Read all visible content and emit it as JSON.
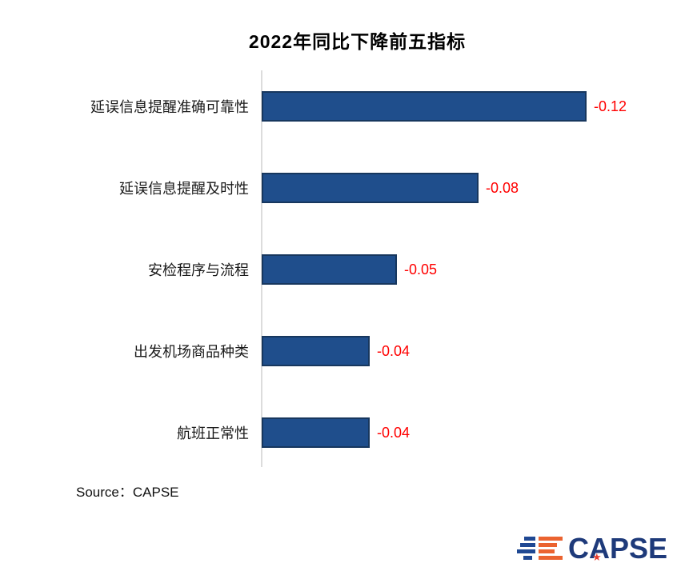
{
  "page": {
    "source": "Source：CAPSE"
  },
  "chart_data": {
    "type": "bar",
    "orientation": "horizontal",
    "title": "2022年同比下降前五指标",
    "categories": [
      "延误信息提醒准确可靠性",
      "延误信息提醒及时性",
      "安检程序与流程",
      "出发机场商品种类",
      "航班正常性"
    ],
    "values": [
      -0.12,
      -0.08,
      -0.05,
      -0.04,
      -0.04
    ],
    "value_labels": [
      "-0.12",
      "-0.08",
      "-0.05",
      "-0.04",
      "-0.04"
    ],
    "xlim": [
      0,
      0.12
    ],
    "grid": false,
    "legend": false,
    "bar_color": "#1f4e8c",
    "bar_border_color": "#17375e",
    "value_label_color": "#ff0000",
    "axis_line_color": "#dcdcdc"
  },
  "logo": {
    "text": "CAPSE",
    "star_icon": "★",
    "navy_color": "#1e3a7a",
    "orange_color": "#eb6330",
    "star_color": "#e63e2e"
  }
}
